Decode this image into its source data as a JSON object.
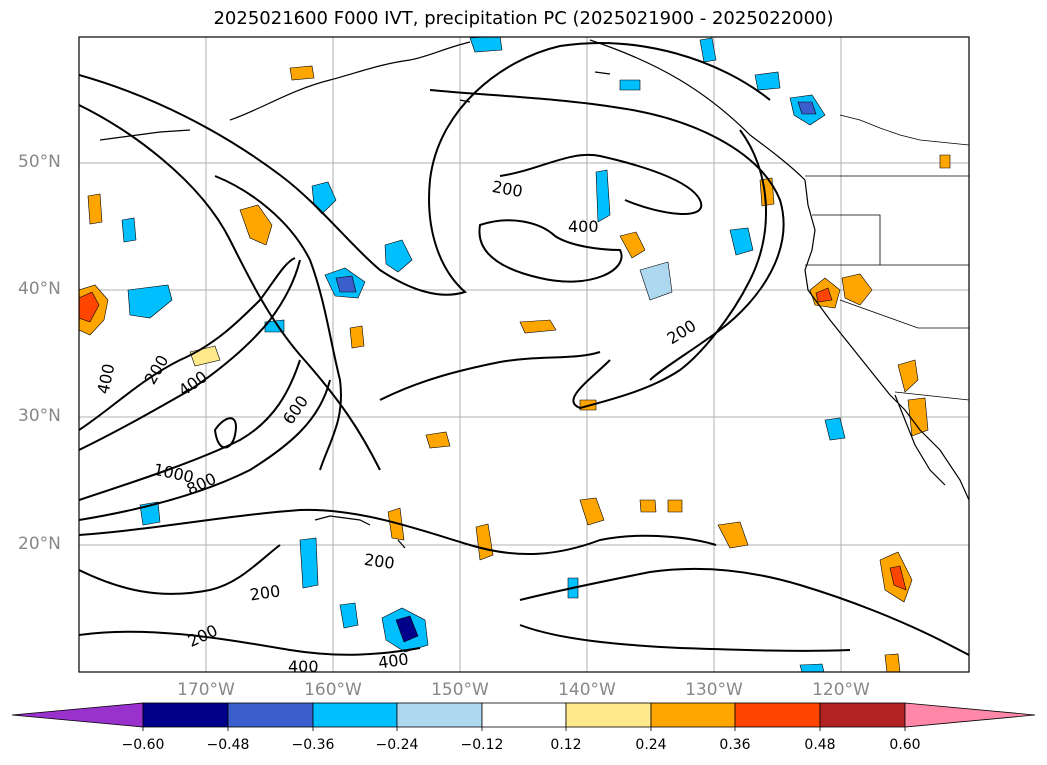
{
  "title": "2025021600 F000 IVT, precipitation PC (2025021900 - 2025022000)",
  "lat_labels": [
    "50°N",
    "40°N",
    "30°N",
    "20°N"
  ],
  "lon_labels": [
    "170°W",
    "160°W",
    "150°W",
    "140°W",
    "130°W",
    "120°W"
  ],
  "contour_labels": [
    "200",
    "400",
    "200",
    "400",
    "200",
    "400",
    "600",
    "1000",
    "800",
    "200",
    "200",
    "200",
    "400",
    "400"
  ],
  "colorbar": {
    "ticks": [
      "−0.60",
      "−0.48",
      "−0.36",
      "−0.24",
      "−0.12",
      "0.12",
      "0.24",
      "0.36",
      "0.48",
      "0.60"
    ],
    "colors": [
      "#9932cc",
      "#00008b",
      "#3a5fcd",
      "#00bfff",
      "#add8f0",
      "#ffffff",
      "#ffe98a",
      "#ffa500",
      "#ff4500",
      "#b22222",
      "#ff87a8"
    ]
  }
}
